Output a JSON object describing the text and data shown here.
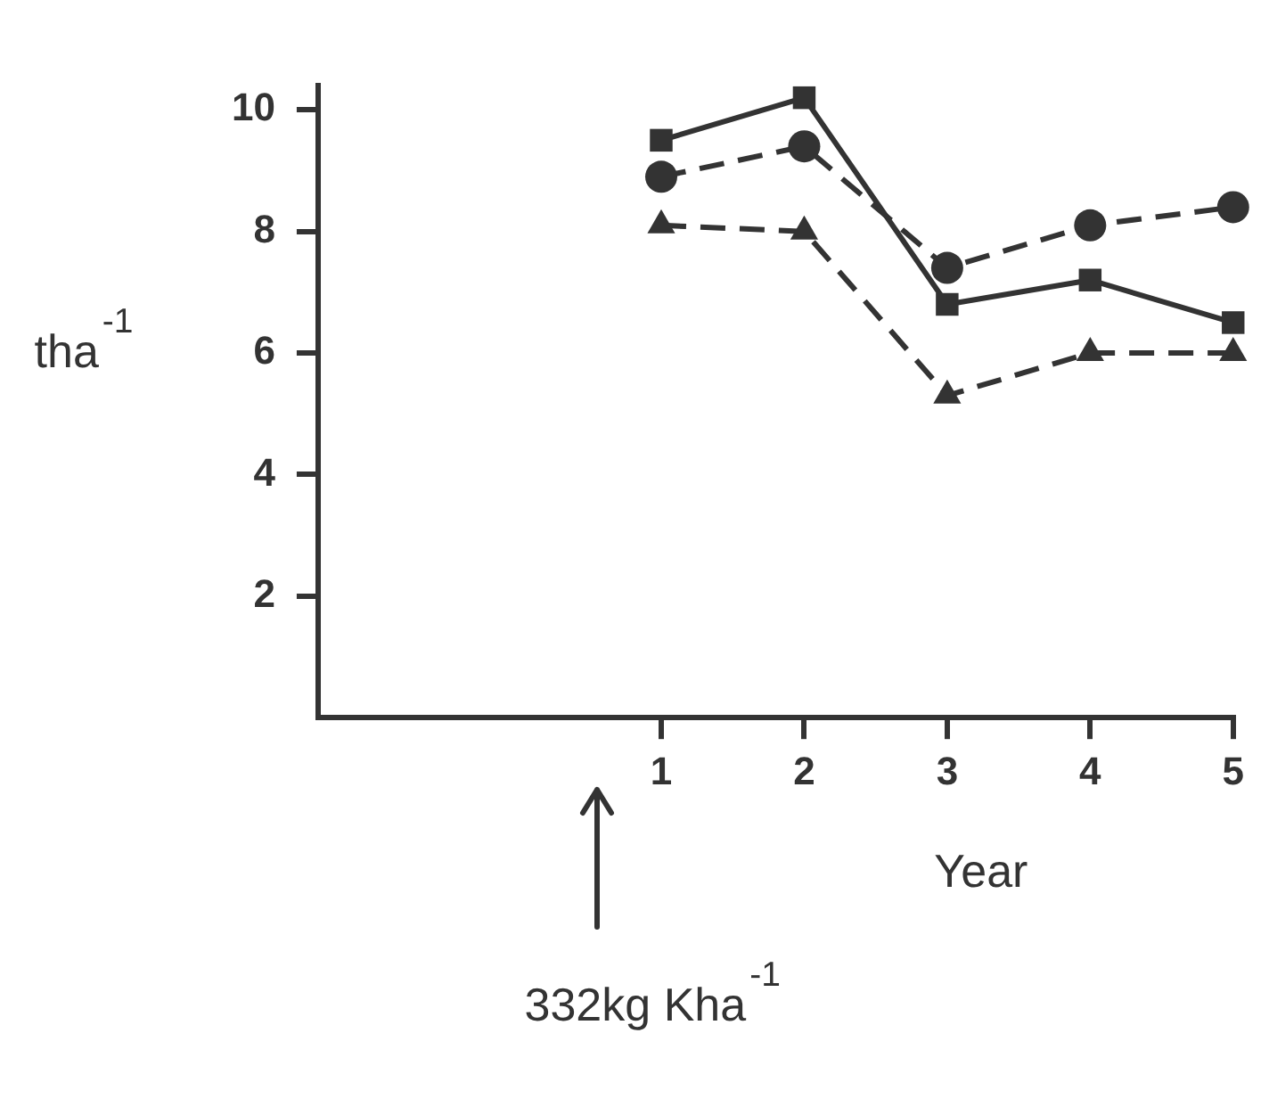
{
  "chart_data": {
    "type": "line",
    "xlabel": "Year",
    "ylabel": "tha$^{-1}$",
    "x": [
      1,
      2,
      3,
      4,
      5
    ],
    "series": [
      {
        "color": "#333333",
        "marker": "square",
        "line_style": "solid",
        "values": [
          9.5,
          10.2,
          6.8,
          7.2,
          6.5
        ]
      },
      {
        "color": "#333333",
        "marker": "circle",
        "line_style": "dashed",
        "values": [
          8.9,
          9.4,
          7.4,
          8.1,
          8.4
        ]
      },
      {
        "color": "#333333",
        "marker": "triangle",
        "line_style": "dashed",
        "values": [
          8.1,
          8.0,
          5.3,
          6.0,
          6.0
        ]
      }
    ],
    "xlim": [
      -1.4,
      5
    ],
    "xticks": [
      1,
      2,
      3,
      4,
      5
    ],
    "ylim": [
      0,
      10.4
    ],
    "yticks": [
      2,
      4,
      6,
      8,
      10
    ],
    "grid": false,
    "legend": false,
    "annotations": [
      "332kg Kha$^{-1}$"
    ]
  }
}
